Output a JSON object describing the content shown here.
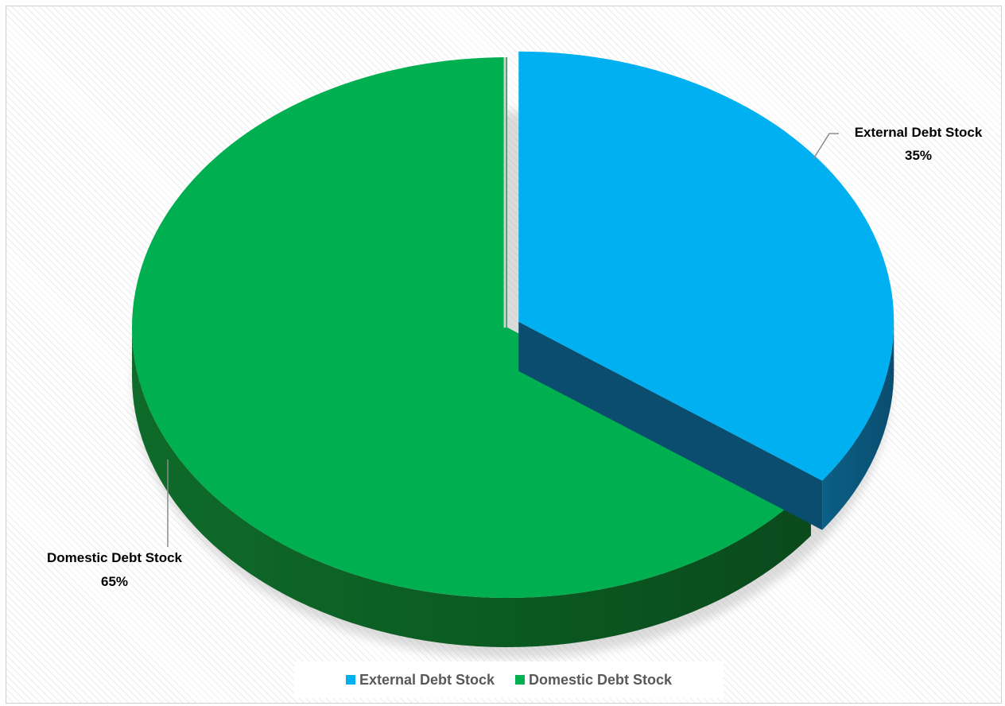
{
  "chart_data": {
    "type": "pie",
    "style": "3d-exploded",
    "slices": [
      {
        "label": "External Debt Stock",
        "value": 35,
        "display": "35%",
        "color": "#00B0F0"
      },
      {
        "label": "Domestic Debt Stock",
        "value": 65,
        "display": "65%",
        "color": "#00B050"
      }
    ],
    "legend_position": "bottom",
    "legend": [
      "External Debt Stock",
      "Domestic Debt Stock"
    ]
  }
}
